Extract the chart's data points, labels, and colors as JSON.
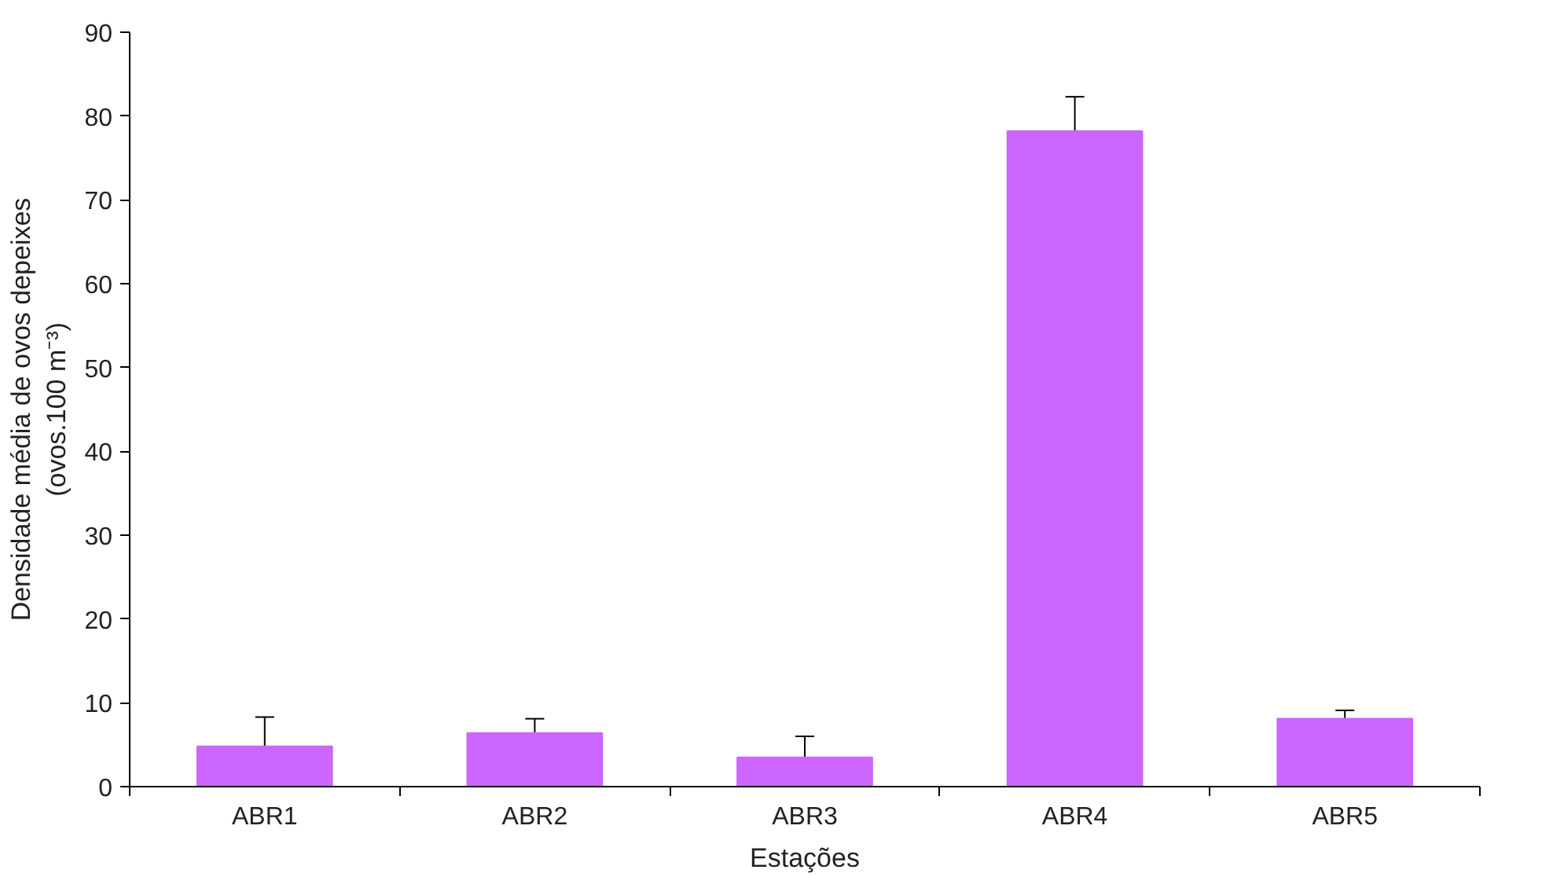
{
  "chart_data": {
    "type": "bar",
    "xlabel": "Estações",
    "ylabel": "Densidade média de ovos depeixes\n(ovos.100 m⁻³)",
    "categories": [
      "ABR1",
      "ABR2",
      "ABR3",
      "ABR4",
      "ABR5"
    ],
    "values": [
      4.8,
      6.4,
      3.5,
      78.2,
      8.1
    ],
    "errors": [
      [
        4.8,
        8.3
      ],
      [
        6.4,
        8.1
      ],
      [
        3.5,
        6.0
      ],
      [
        78.2,
        82.3
      ],
      [
        8.1,
        9.1
      ]
    ],
    "color": "#cc66ff",
    "ylim": [
      0,
      90
    ],
    "yticks": [
      0,
      10,
      20,
      30,
      40,
      50,
      60,
      70,
      80,
      90
    ],
    "grid": false
  }
}
